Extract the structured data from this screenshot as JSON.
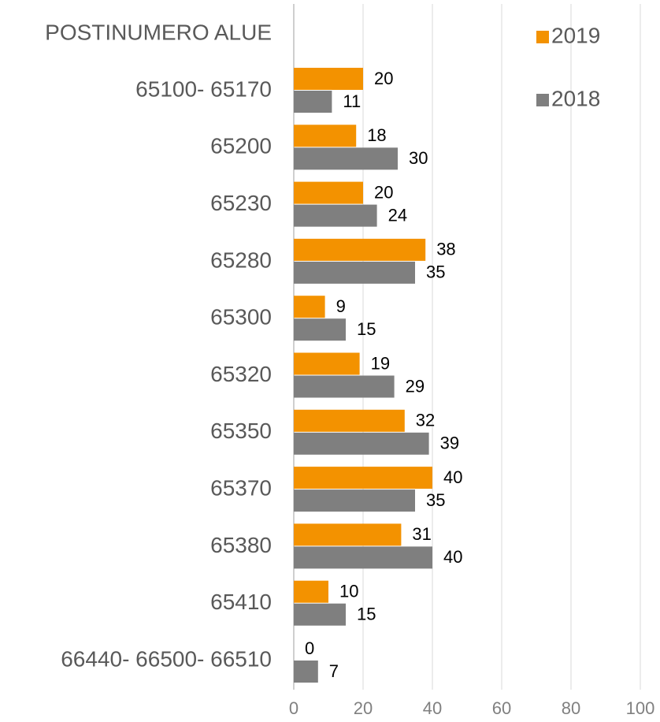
{
  "chart_data": {
    "type": "bar",
    "orientation": "horizontal",
    "ylabel": "POSTINUMERO ALUE",
    "categories": [
      "65100- 65170",
      "65200",
      "65230",
      "65280",
      "65300",
      "65320",
      "65350",
      "65370",
      "65380",
      "65410",
      "66440- 66500- 66510"
    ],
    "series": [
      {
        "name": "2019",
        "color": "#f39200",
        "values": [
          20,
          18,
          20,
          38,
          9,
          19,
          32,
          40,
          31,
          10,
          0
        ]
      },
      {
        "name": "2018",
        "color": "#7f7f7f",
        "values": [
          11,
          30,
          24,
          35,
          15,
          29,
          39,
          35,
          40,
          15,
          7
        ]
      }
    ],
    "xlim": [
      0,
      100
    ],
    "xticks": [
      0,
      20,
      40,
      60,
      80,
      100
    ],
    "grid": true,
    "legend": "upper right"
  }
}
